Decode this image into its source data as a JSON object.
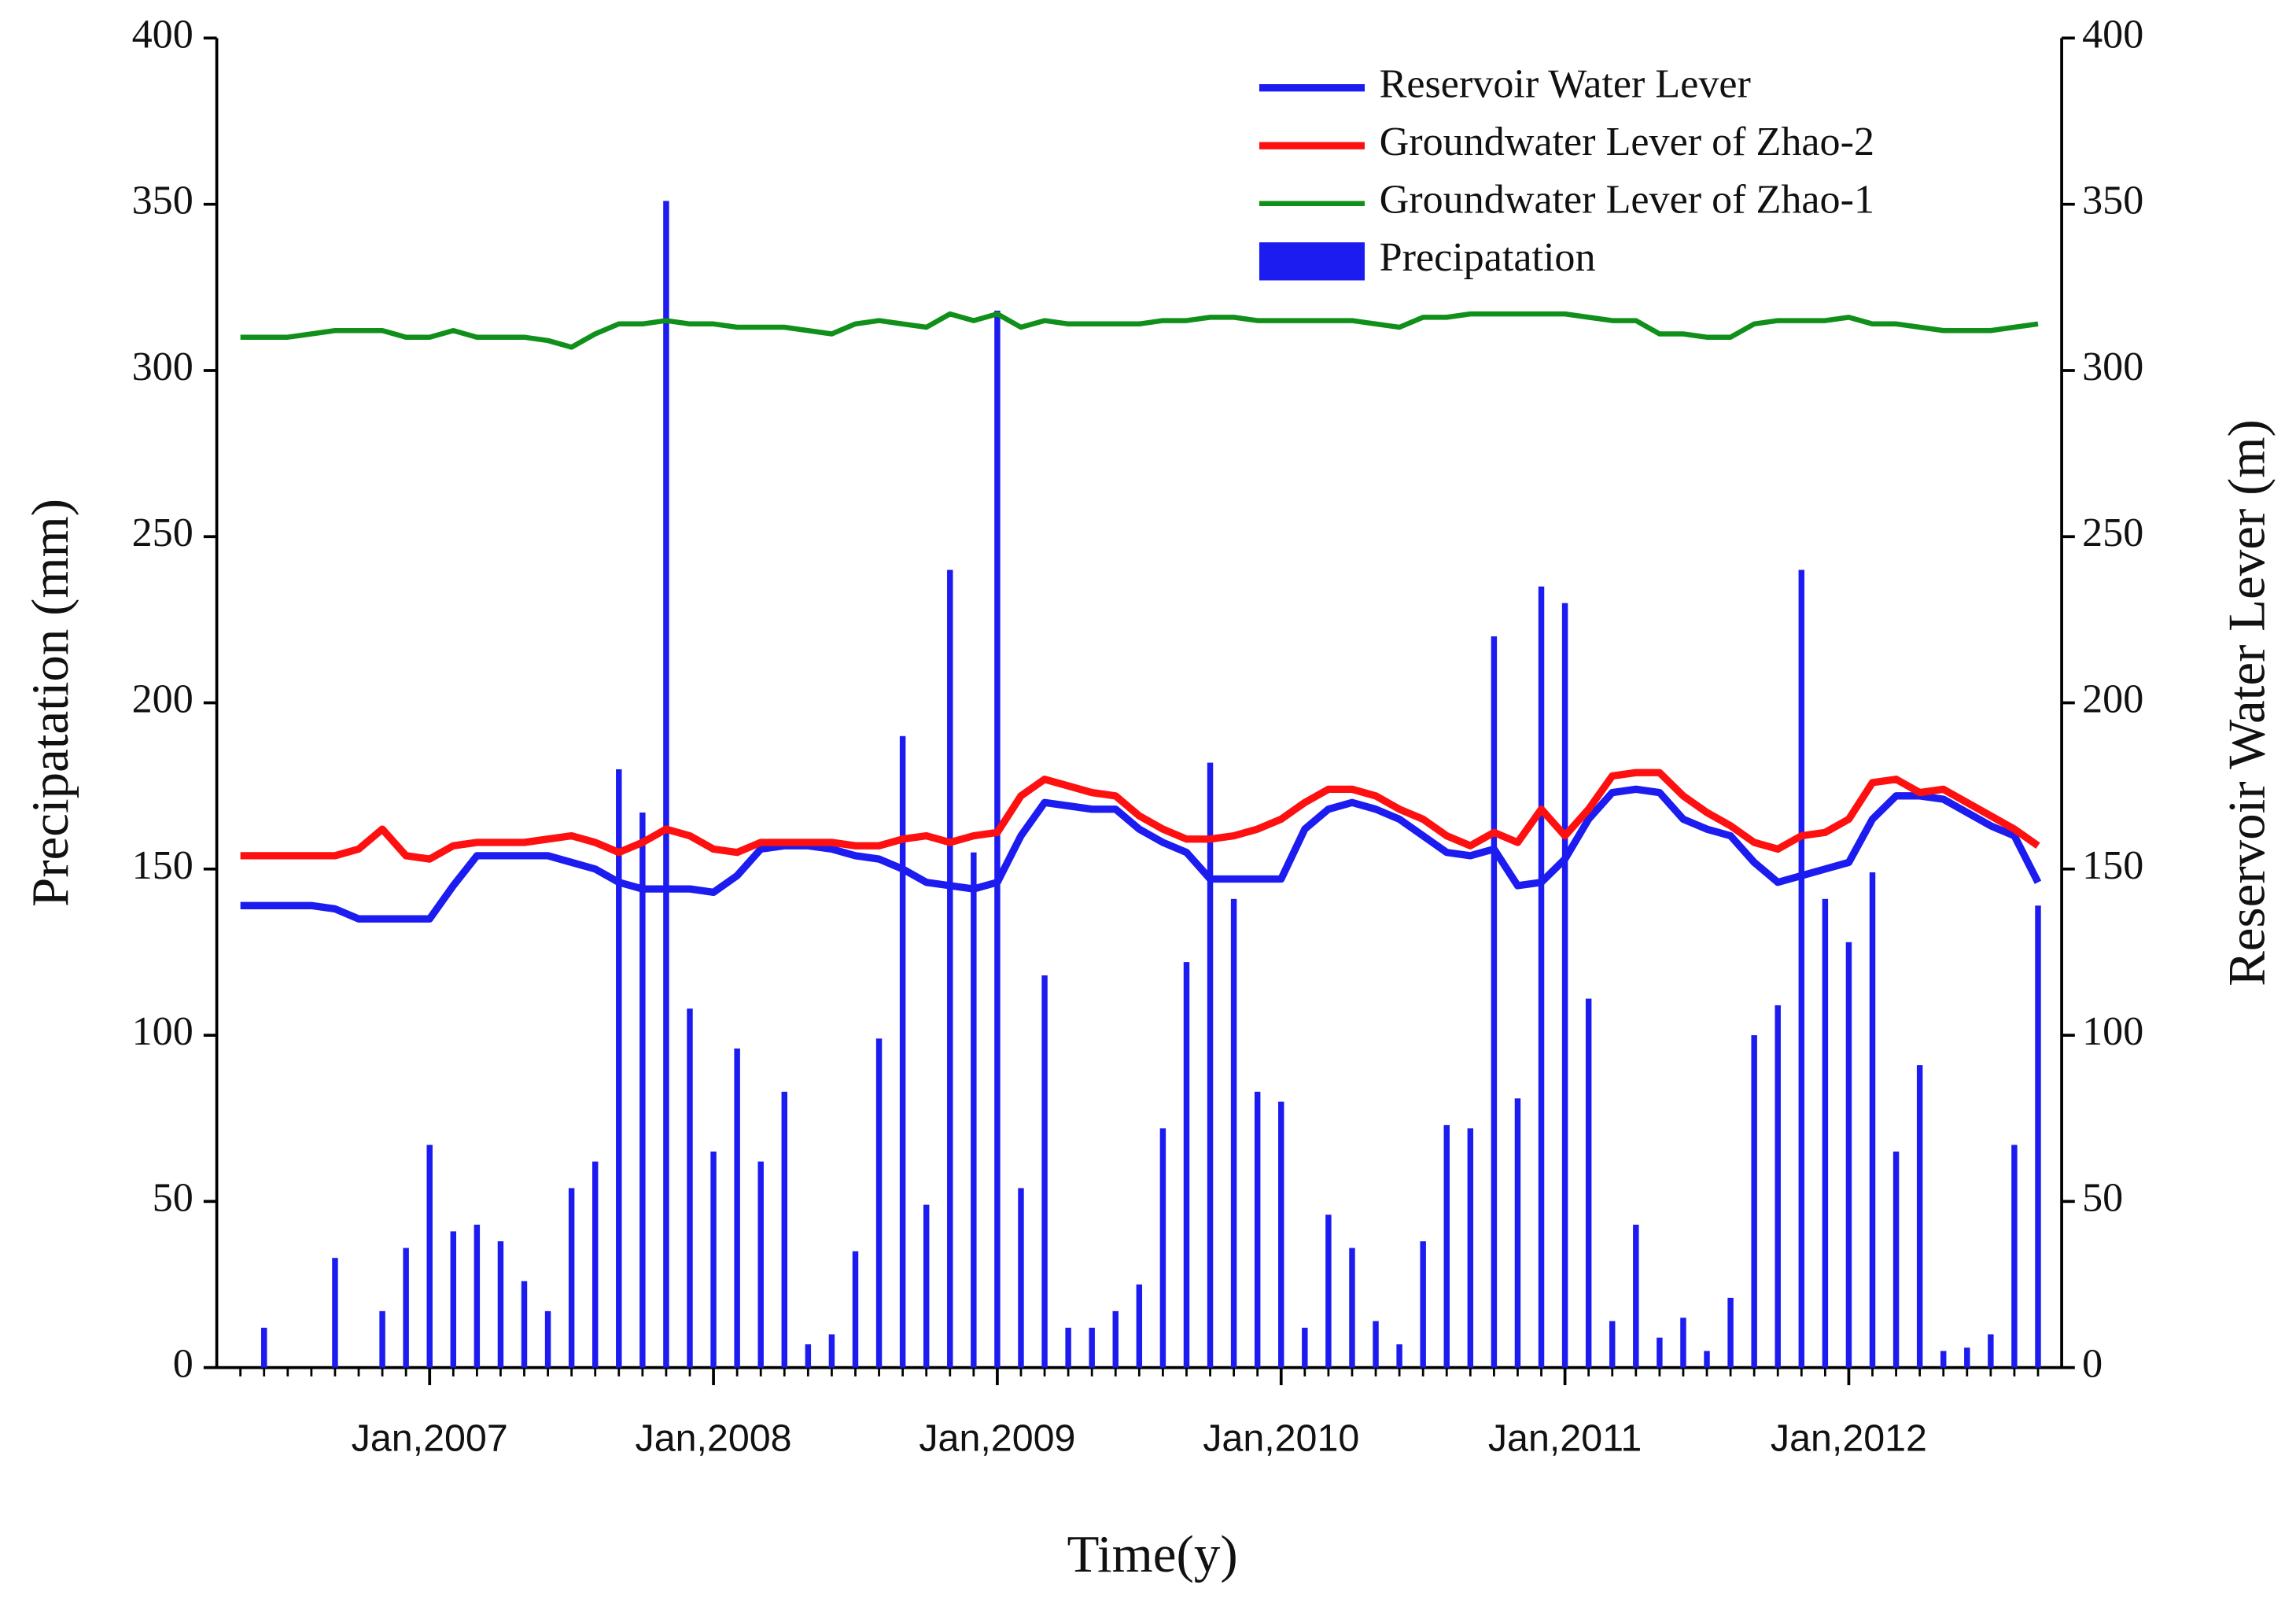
{
  "chart_data": {
    "type": "line",
    "x_label": "Time(y)",
    "y_label": "Precipatation (mm)",
    "y2_label": "Reservoir Water Lever (m)",
    "x": [
      "2006-05",
      "2006-06",
      "2006-07",
      "2006-08",
      "2006-09",
      "2006-10",
      "2006-11",
      "2006-12",
      "2007-01",
      "2007-02",
      "2007-03",
      "2007-04",
      "2007-05",
      "2007-06",
      "2007-07",
      "2007-08",
      "2007-09",
      "2007-10",
      "2007-11",
      "2007-12",
      "2008-01",
      "2008-02",
      "2008-03",
      "2008-04",
      "2008-05",
      "2008-06",
      "2008-07",
      "2008-08",
      "2008-09",
      "2008-10",
      "2008-11",
      "2008-12",
      "2009-01",
      "2009-02",
      "2009-03",
      "2009-04",
      "2009-05",
      "2009-06",
      "2009-07",
      "2009-08",
      "2009-09",
      "2009-10",
      "2009-11",
      "2009-12",
      "2010-01",
      "2010-02",
      "2010-03",
      "2010-04",
      "2010-05",
      "2010-06",
      "2010-07",
      "2010-08",
      "2010-09",
      "2010-10",
      "2010-11",
      "2010-12",
      "2011-01",
      "2011-02",
      "2011-03",
      "2011-04",
      "2011-05",
      "2011-06",
      "2011-07",
      "2011-08",
      "2011-09",
      "2011-10",
      "2011-11",
      "2011-12",
      "2012-01",
      "2012-02",
      "2012-03",
      "2012-04",
      "2012-05",
      "2012-06",
      "2012-07",
      "2012-08",
      "2012-09"
    ],
    "series": [
      {
        "name": "Reservoir Water Lever",
        "type": "line",
        "axis": "y2",
        "color": "#1c1cf0",
        "width": 5,
        "values": [
          139,
          139,
          139,
          139,
          138,
          135,
          135,
          135,
          135,
          145,
          154,
          154,
          154,
          154,
          152,
          150,
          146,
          144,
          144,
          144,
          143,
          148,
          156,
          157,
          157,
          156,
          154,
          153,
          150,
          146,
          145,
          144,
          146,
          160,
          170,
          169,
          168,
          168,
          162,
          158,
          155,
          147,
          147,
          147,
          147,
          162,
          168,
          170,
          168,
          165,
          160,
          155,
          154,
          156,
          145,
          146,
          153,
          165,
          173,
          174,
          173,
          165,
          162,
          160,
          152,
          146,
          148,
          150,
          152,
          165,
          172,
          172,
          171,
          167,
          163,
          160,
          146
        ]
      },
      {
        "name": "Groundwater Lever of Zhao-2",
        "type": "line",
        "axis": "y2",
        "color": "#ff1010",
        "width": 5,
        "values": [
          154,
          154,
          154,
          154,
          154,
          156,
          162,
          154,
          153,
          157,
          158,
          158,
          158,
          159,
          160,
          158,
          155,
          158,
          162,
          160,
          156,
          155,
          158,
          158,
          158,
          158,
          157,
          157,
          159,
          160,
          158,
          160,
          161,
          172,
          177,
          175,
          173,
          172,
          166,
          162,
          159,
          159,
          160,
          162,
          165,
          170,
          174,
          174,
          172,
          168,
          165,
          160,
          157,
          161,
          158,
          168,
          160,
          168,
          178,
          179,
          179,
          172,
          167,
          163,
          158,
          156,
          160,
          161,
          165,
          176,
          177,
          173,
          174,
          170,
          166,
          162,
          157
        ]
      },
      {
        "name": "Groundwater Lever of Zhao-1",
        "type": "line",
        "axis": "y2",
        "color": "#10901a",
        "width": 3.5,
        "values": [
          310,
          310,
          310,
          311,
          312,
          312,
          312,
          310,
          310,
          312,
          310,
          310,
          310,
          309,
          307,
          311,
          314,
          314,
          315,
          314,
          314,
          313,
          313,
          313,
          312,
          311,
          314,
          315,
          314,
          313,
          317,
          315,
          317,
          313,
          315,
          314,
          314,
          314,
          314,
          315,
          315,
          316,
          316,
          315,
          315,
          315,
          315,
          315,
          314,
          313,
          316,
          316,
          317,
          317,
          317,
          317,
          317,
          316,
          315,
          315,
          311,
          311,
          310,
          310,
          314,
          315,
          315,
          315,
          316,
          314,
          314,
          313,
          312,
          312,
          312,
          313,
          314
        ]
      },
      {
        "name": "Precipatation",
        "type": "bar",
        "color": "#1c1cf0",
        "values": [
          null,
          12,
          0,
          0,
          33,
          0,
          17,
          36,
          67,
          41,
          43,
          38,
          26,
          17,
          54,
          62,
          180,
          167,
          351,
          108,
          65,
          96,
          62,
          83,
          7,
          10,
          35,
          99,
          190,
          49,
          240,
          155,
          318,
          54,
          118,
          12,
          12,
          17,
          25,
          72,
          122,
          182,
          141,
          83,
          80,
          12,
          46,
          36,
          14,
          7,
          38,
          73,
          72,
          220,
          81,
          235,
          230,
          111,
          14,
          43,
          9,
          15,
          5,
          21,
          100,
          109,
          240,
          141,
          128,
          149,
          65,
          91,
          5,
          6,
          10,
          67,
          139
        ]
      }
    ],
    "xlim": [
      "2006-04",
      "2012-10"
    ],
    "xticks": [
      {
        "value": "2007-01",
        "label": "Jan,2007"
      },
      {
        "value": "2008-01",
        "label": "Jan,2008"
      },
      {
        "value": "2009-01",
        "label": "Jan,2009"
      },
      {
        "value": "2010-01",
        "label": "Jan,2010"
      },
      {
        "value": "2011-01",
        "label": "Jan,2011"
      },
      {
        "value": "2012-01",
        "label": "Jan,2012"
      }
    ],
    "ylim": [
      0,
      400
    ],
    "yticks": [
      0,
      50,
      100,
      150,
      200,
      250,
      300,
      350,
      400
    ],
    "y2lim": [
      0,
      400
    ],
    "y2ticks": [
      0,
      50,
      100,
      150,
      200,
      250,
      300,
      350,
      400
    ],
    "grid": false,
    "legend": "upper right"
  }
}
